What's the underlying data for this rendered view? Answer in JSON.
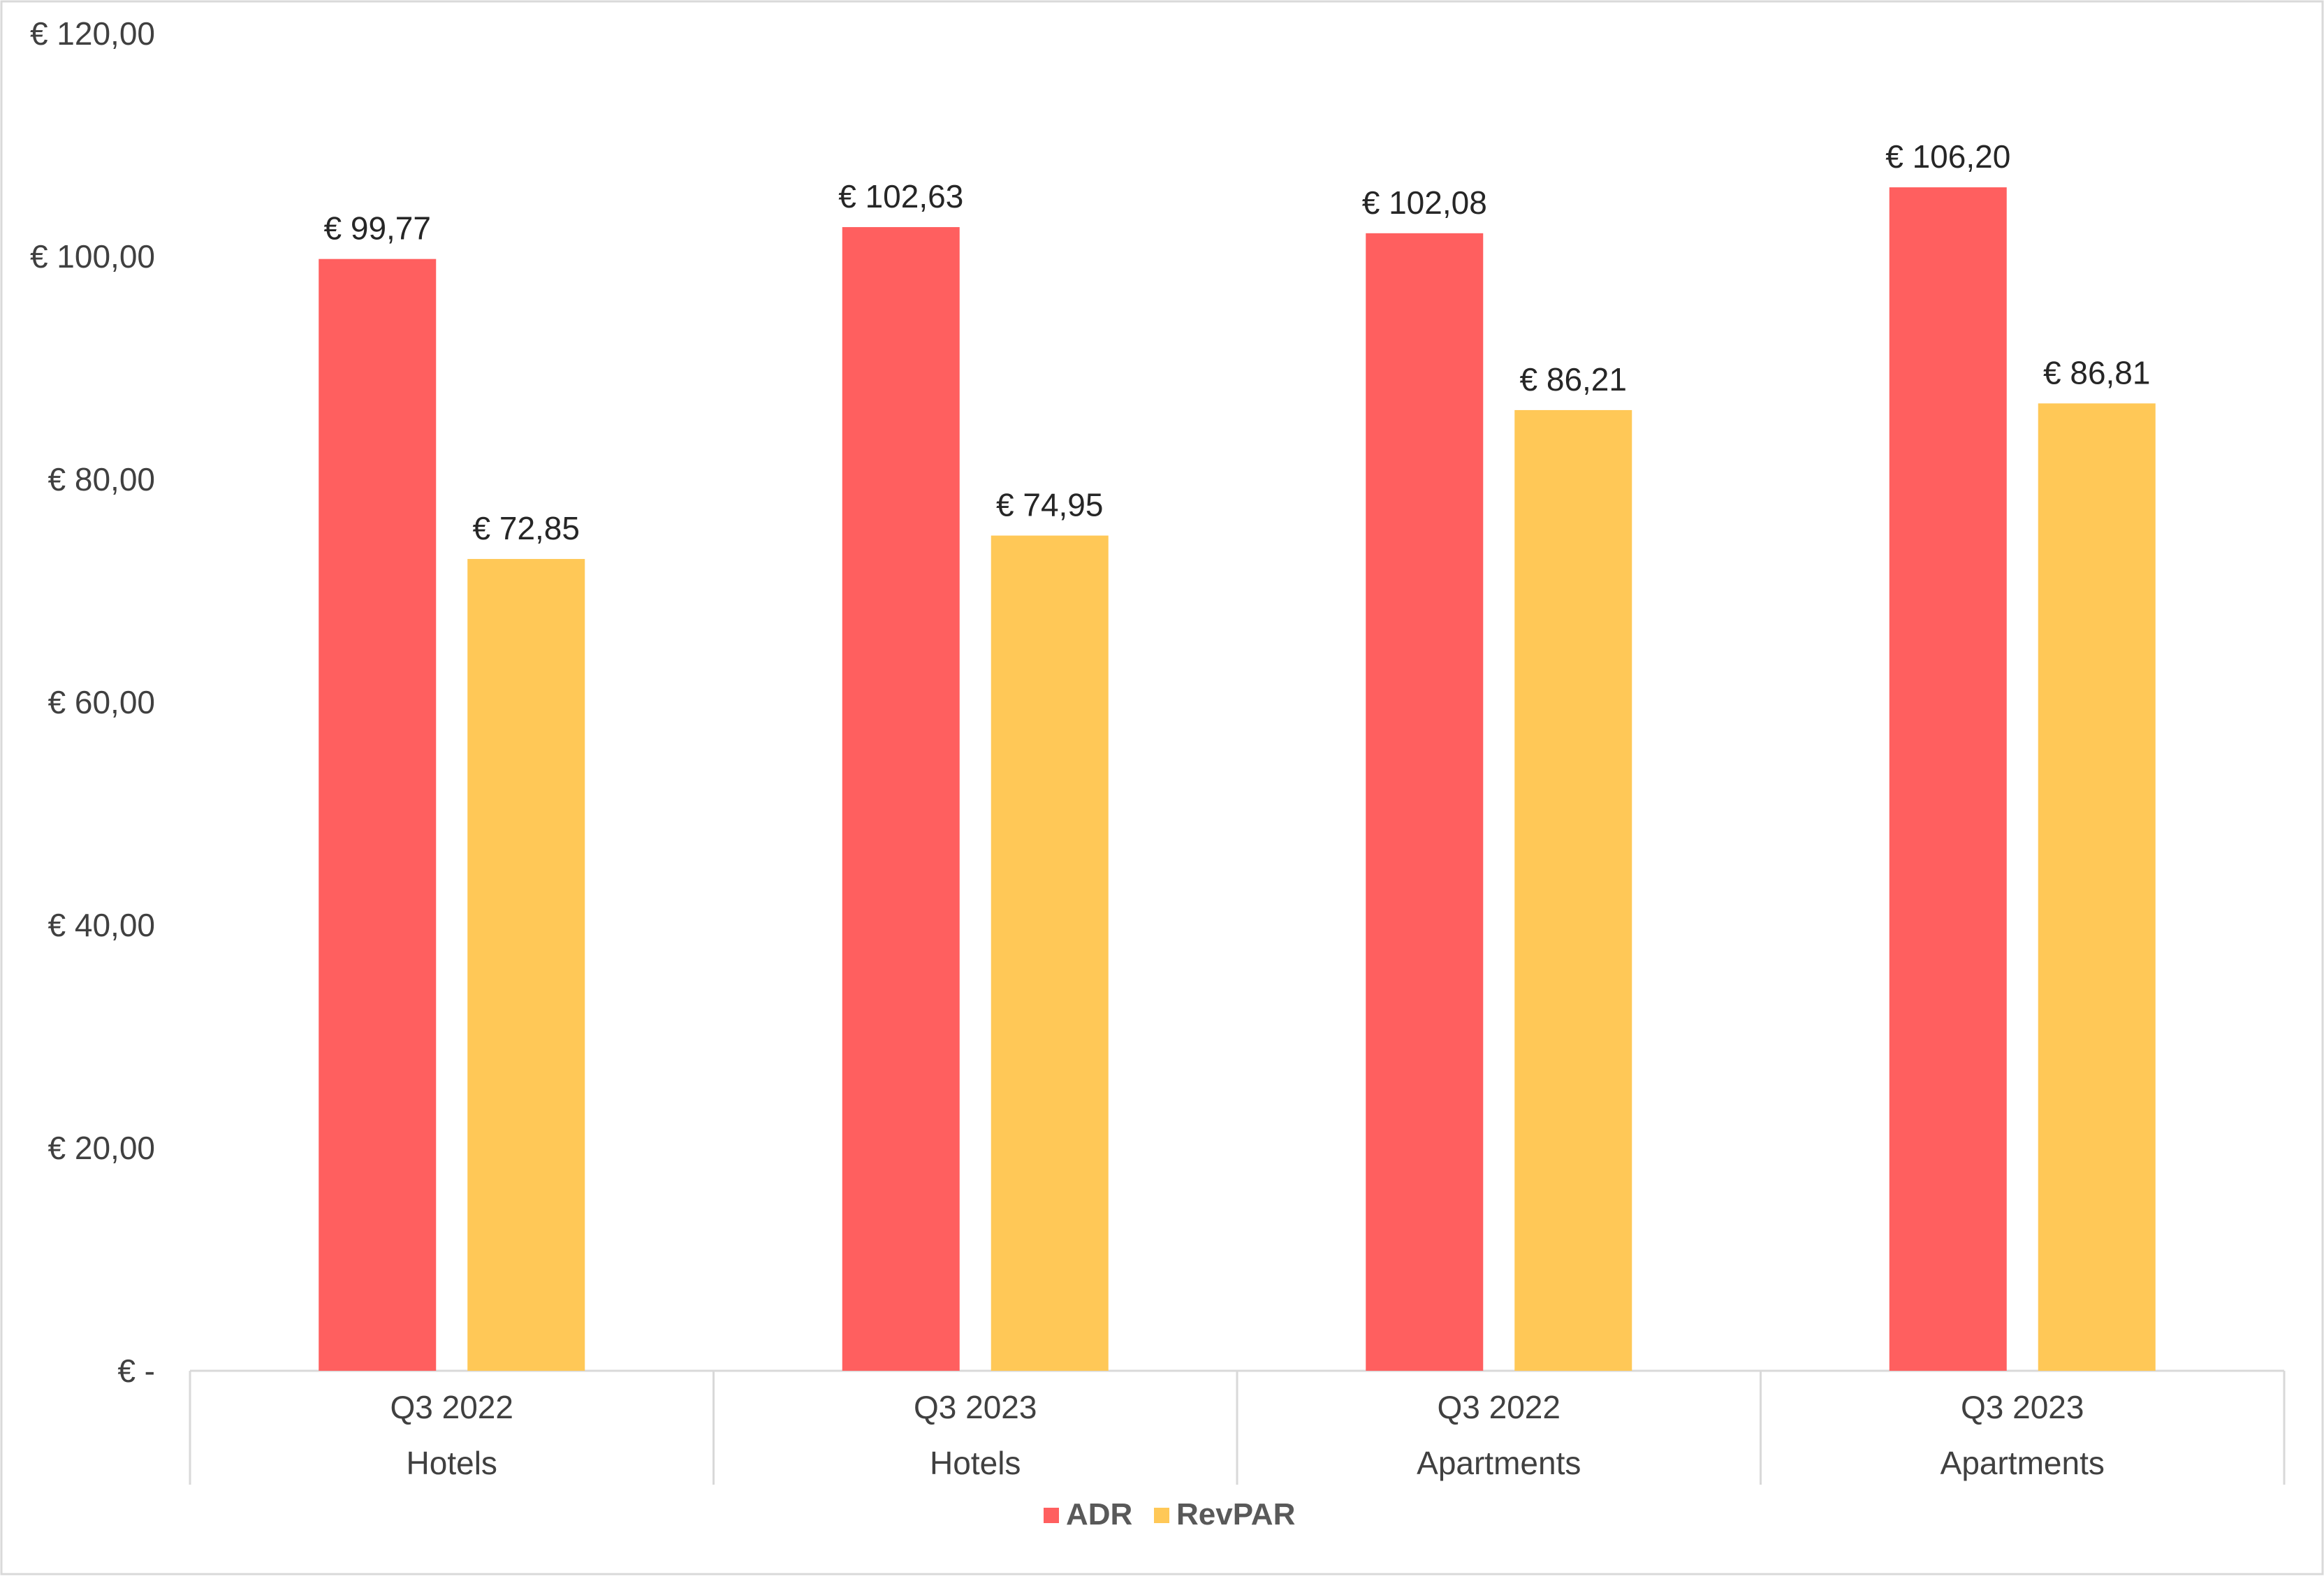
{
  "chart_data": {
    "type": "bar",
    "title": "",
    "xlabel": "",
    "ylabel": "",
    "ylim": [
      0,
      120
    ],
    "yticks": [
      0,
      20,
      40,
      60,
      80,
      100,
      120
    ],
    "ytick_labels": [
      "€ -",
      "€ 20,00",
      "€ 40,00",
      "€ 60,00",
      "€ 80,00",
      "€ 100,00",
      "€ 120,00"
    ],
    "grid": false,
    "categories": [
      {
        "period": "Q3 2022",
        "group": "Hotels"
      },
      {
        "period": "Q3 2023",
        "group": "Hotels"
      },
      {
        "period": "Q3 2022",
        "group": "Apartments"
      },
      {
        "period": "Q3 2023",
        "group": "Apartments"
      }
    ],
    "series": [
      {
        "name": "ADR",
        "color": "#FF5F5F",
        "values": [
          99.77,
          102.63,
          102.08,
          106.2
        ],
        "labels": [
          "€ 99,77",
          "€ 102,63",
          "€ 102,08",
          "€ 106,20"
        ]
      },
      {
        "name": "RevPAR",
        "color": "#FFC857",
        "values": [
          72.85,
          74.95,
          86.21,
          86.81
        ],
        "labels": [
          "€ 72,85",
          "€ 74,95",
          "€ 86,21",
          "€ 86,81"
        ]
      }
    ],
    "legend": {
      "position": "bottom-center"
    }
  }
}
